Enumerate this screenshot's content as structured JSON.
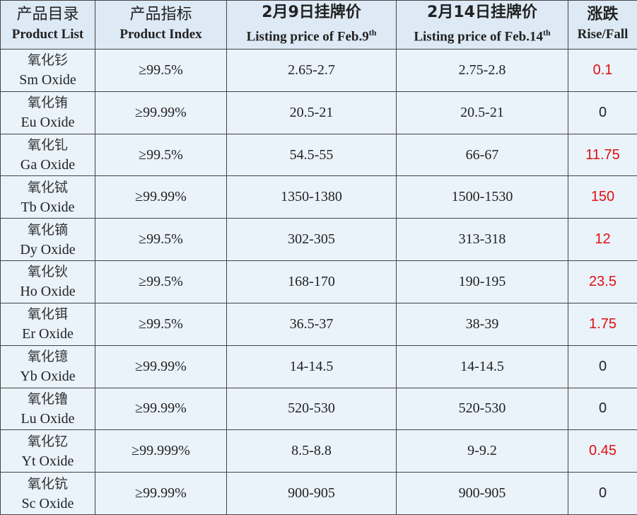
{
  "table": {
    "header": [
      {
        "cn": "产品目录",
        "en": "Product List"
      },
      {
        "cn": "产品指标",
        "en": "Product Index"
      },
      {
        "cn": "2月9日挂牌价",
        "en": "Listing price of Feb.9",
        "sup": "th"
      },
      {
        "cn": "2月14日挂牌价",
        "en": "Listing price of Feb.14",
        "sup": "th"
      },
      {
        "cn": "涨跌",
        "en": "Rise/Fall"
      }
    ],
    "rows": [
      {
        "cn": "氧化钐",
        "en": "Sm Oxide",
        "index": "≥99.5%",
        "feb9": "2.65-2.7",
        "feb14": "2.75-2.8",
        "change": "0.1"
      },
      {
        "cn": "氧化铕",
        "en": "Eu Oxide",
        "index": "≥99.99%",
        "feb9": "20.5-21",
        "feb14": "20.5-21",
        "change": "0"
      },
      {
        "cn": "氧化钆",
        "en": "Ga Oxide",
        "index": "≥99.5%",
        "feb9": "54.5-55",
        "feb14": "66-67",
        "change": "11.75"
      },
      {
        "cn": "氧化铽",
        "en": "Tb Oxide",
        "index": "≥99.99%",
        "feb9": "1350-1380",
        "feb14": "1500-1530",
        "change": "150"
      },
      {
        "cn": "氧化镝",
        "en": "Dy Oxide",
        "index": "≥99.5%",
        "feb9": "302-305",
        "feb14": "313-318",
        "change": "12"
      },
      {
        "cn": "氧化钬",
        "en": "Ho Oxide",
        "index": "≥99.5%",
        "feb9": "168-170",
        "feb14": "190-195",
        "change": "23.5"
      },
      {
        "cn": "氧化铒",
        "en": "Er Oxide",
        "index": "≥99.5%",
        "feb9": "36.5-37",
        "feb14": "38-39",
        "change": "1.75"
      },
      {
        "cn": "氧化镱",
        "en": "Yb Oxide",
        "index": "≥99.99%",
        "feb9": "14-14.5",
        "feb14": "14-14.5",
        "change": "0"
      },
      {
        "cn": "氧化镥",
        "en": "Lu Oxide",
        "index": "≥99.99%",
        "feb9": "520-530",
        "feb14": "520-530",
        "change": "0"
      },
      {
        "cn": "氧化钇",
        "en": "Yt Oxide",
        "index": "≥99.999%",
        "feb9": "8.5-8.8",
        "feb14": "9-9.2",
        "change": "0.45"
      },
      {
        "cn": "氧化钪",
        "en": "Sc Oxide",
        "index": "≥99.99%",
        "feb9": "900-905",
        "feb14": "900-905",
        "change": "0"
      }
    ]
  }
}
